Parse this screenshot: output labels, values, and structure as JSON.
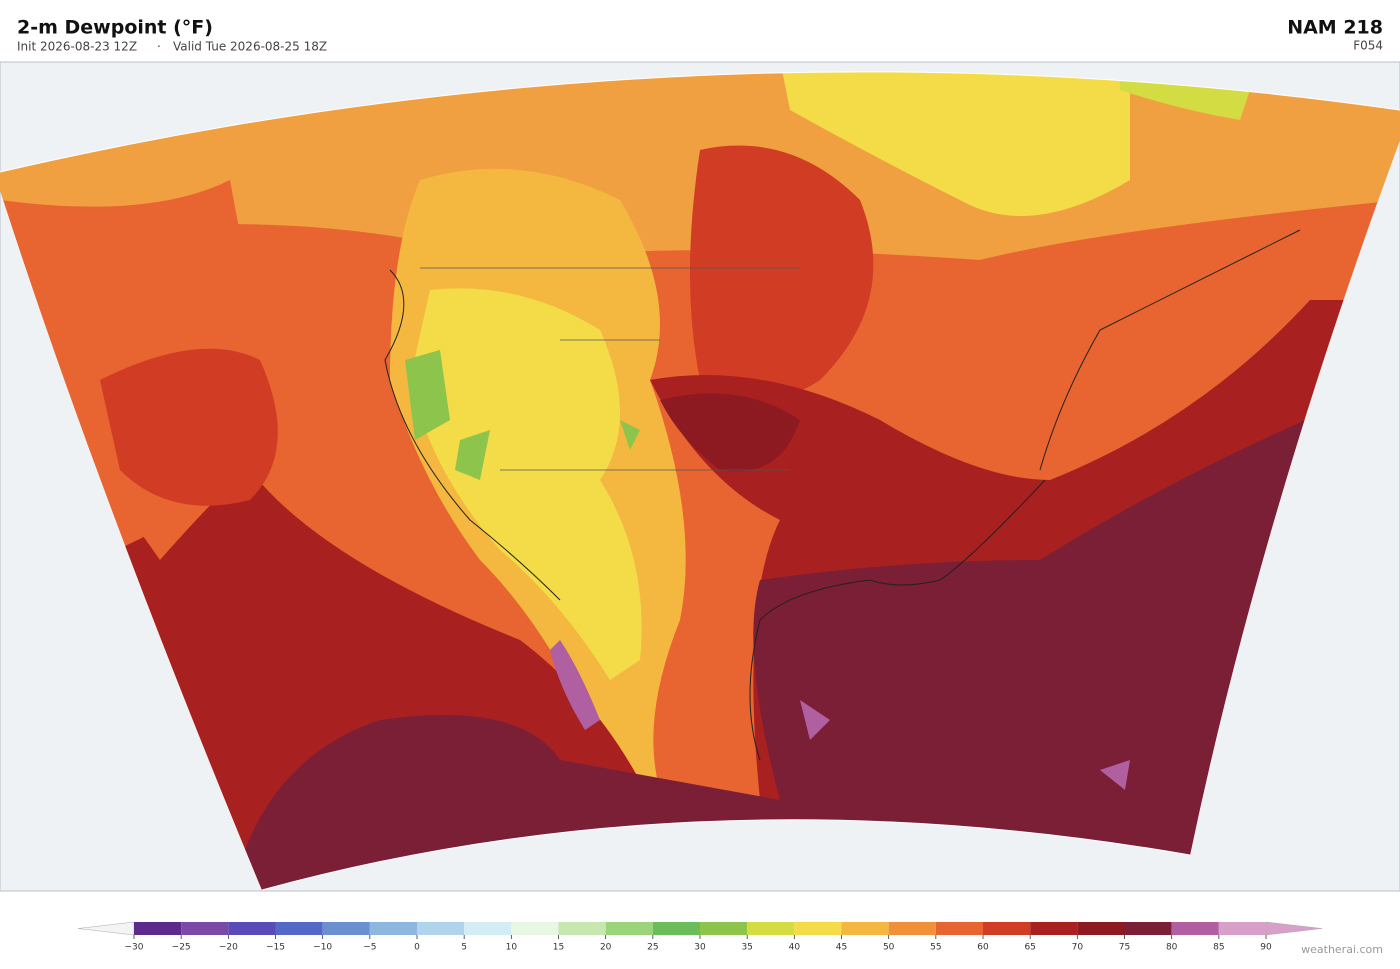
{
  "header": {
    "title": "2-m Dewpoint  (°F)",
    "init": "Init 2026-08-23 12Z",
    "separator": "·",
    "valid": "Valid Tue 2026-08-25 18Z",
    "model": "NAM  218",
    "forecast_hour": "F054"
  },
  "colorbar": {
    "ticks": [
      {
        "value": -30,
        "label": "−30"
      },
      {
        "value": -25,
        "label": "−25"
      },
      {
        "value": -20,
        "label": "−20"
      },
      {
        "value": -15,
        "label": "−15"
      },
      {
        "value": -10,
        "label": "−10"
      },
      {
        "value": -5,
        "label": "−5"
      },
      0,
      5,
      10,
      15,
      20,
      25,
      30,
      35,
      40,
      45,
      50,
      55,
      60,
      65,
      70,
      75,
      80,
      85,
      90
    ],
    "colors": [
      "#5c2a8c",
      "#7a4aa6",
      "#5a4cb8",
      "#5468c8",
      "#6a90d0",
      "#8cb8e0",
      "#b0d4ec",
      "#d4ecf4",
      "#e8f6e4",
      "#c8e6b0",
      "#9cd47c",
      "#6cbc5c",
      "#8cc44c",
      "#d4dc44",
      "#f4dc48",
      "#f4b840",
      "#f09038",
      "#e86430",
      "#d03c24",
      "#a82020",
      "#8c1a20",
      "#7a1f35",
      "#b060a0",
      "#d8a0c8"
    ],
    "under_color": "#f4f4f4",
    "over_color": "#d8a0c8"
  },
  "footer": {
    "credit": "weatherai.com"
  }
}
